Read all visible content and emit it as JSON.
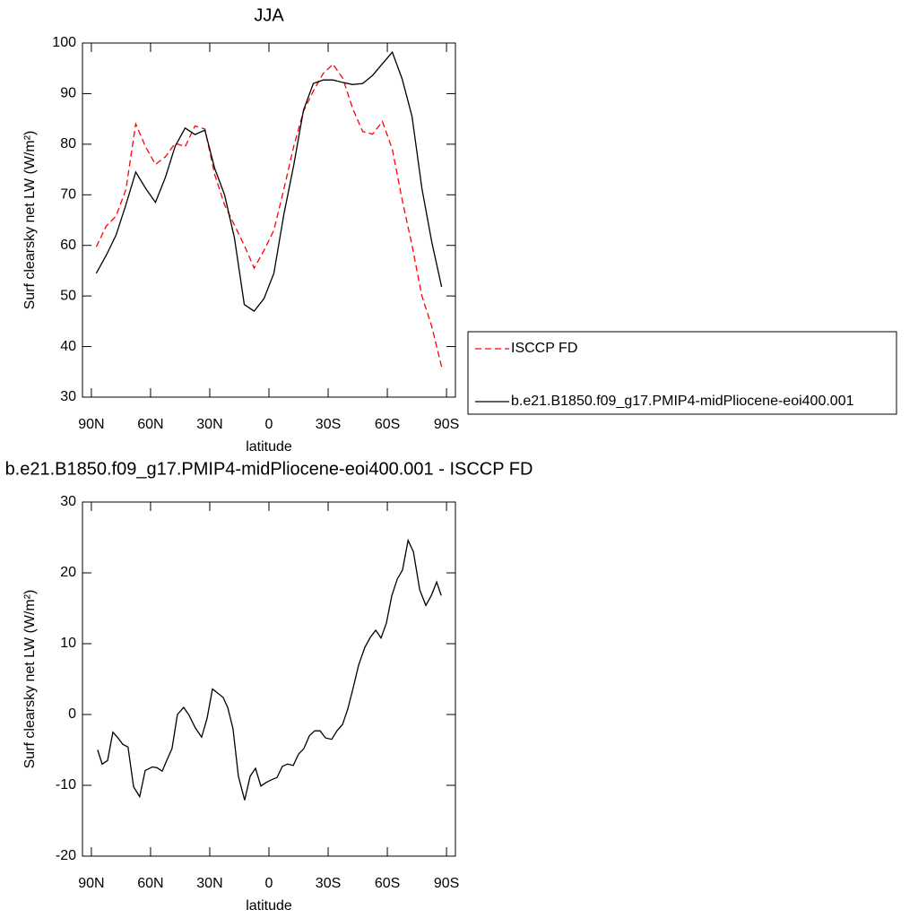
{
  "chart_data": [
    {
      "type": "line",
      "title": "JJA",
      "xlabel": "latitude",
      "ylabel": "Surf clearsky net LW (W/m²)",
      "xlim": [
        94.5,
        -94.5
      ],
      "ylim": [
        100,
        30
      ],
      "xticks": [
        {
          "value": 90,
          "label": "90N"
        },
        {
          "value": 60,
          "label": "60N"
        },
        {
          "value": 30,
          "label": "30N"
        },
        0,
        {
          "value": -30,
          "label": "30S"
        },
        {
          "value": -60,
          "label": "60S"
        },
        {
          "value": -90,
          "label": "90S"
        }
      ],
      "yticks": [
        30,
        40,
        50,
        60,
        70,
        80,
        90,
        100
      ],
      "legend": "right",
      "x": [
        87.5,
        82.5,
        77.5,
        72.5,
        67.5,
        62.5,
        57.5,
        52.5,
        47.5,
        42.5,
        37.5,
        32.5,
        27.5,
        22.5,
        17.5,
        12.5,
        7.5,
        2.5,
        -2.5,
        -7.5,
        -12.5,
        -17.5,
        -22.5,
        -27.5,
        -32.5,
        -37.5,
        -42.5,
        -47.5,
        -52.5,
        -57.5,
        -62.5,
        -67.5,
        -72.5,
        -77.5,
        -82.5,
        -87.5
      ],
      "series": [
        {
          "name": "ISCCP FD",
          "color": "#ff0000",
          "dashed": true,
          "values": [
            59.7,
            63.8,
            65.8,
            71,
            84,
            79.5,
            76,
            77.5,
            80.2,
            79.5,
            83.6,
            83,
            74,
            68,
            64,
            60,
            55.5,
            59,
            63,
            71,
            79.5,
            86.5,
            90.5,
            94,
            95.8,
            93,
            87,
            82.5,
            82,
            84.5,
            79,
            69,
            60,
            50,
            44,
            36
          ]
        },
        {
          "name": "b.e21.B1850.f09_g17.PMIP4-midPliocene-eoi400.001",
          "color": "#000000",
          "dashed": false,
          "values": [
            54.5,
            58,
            62,
            68,
            74.5,
            71.3,
            68.5,
            73.4,
            79.6,
            83.2,
            81.9,
            82.8,
            75.2,
            70,
            61.5,
            48.3,
            47,
            49.5,
            54.5,
            66,
            75.7,
            86.7,
            92,
            92.7,
            92.7,
            92.2,
            91.8,
            92,
            93.6,
            95.9,
            98.2,
            92.9,
            85.5,
            71.3,
            60.7,
            51.8
          ]
        }
      ]
    },
    {
      "type": "line",
      "title": "b.e21.B1850.f09_g17.PMIP4-midPliocene-eoi400.001 - ISCCP FD",
      "xlabel": "latitude",
      "ylabel": "Surf clearsky net LW (W/m²)",
      "xlim": [
        94.5,
        -94.5
      ],
      "ylim": [
        30,
        -20
      ],
      "xticks": [
        {
          "value": 90,
          "label": "90N"
        },
        {
          "value": 60,
          "label": "60N"
        },
        {
          "value": 30,
          "label": "30N"
        },
        0,
        {
          "value": -30,
          "label": "30S"
        },
        {
          "value": -60,
          "label": "60S"
        },
        {
          "value": -90,
          "label": "90S"
        }
      ],
      "yticks": [
        -20,
        -10,
        0,
        10,
        20,
        30
      ],
      "x": [
        86.8,
        84.5,
        81.8,
        79.1,
        76.8,
        74.1,
        71.4,
        68.6,
        65.5,
        62.7,
        59.1,
        56.8,
        54.1,
        51.8,
        49.1,
        46.4,
        43.2,
        40.5,
        37.3,
        34.1,
        31.4,
        28.6,
        25.9,
        23.2,
        20.9,
        18.2,
        15.5,
        12.3,
        9.5,
        6.8,
        4.1,
        1.4,
        -1.4,
        -4.1,
        -6.8,
        -9.5,
        -12.3,
        -15,
        -17.7,
        -20.5,
        -23.2,
        -25.9,
        -28.6,
        -31.8,
        -34.5,
        -37.3,
        -40,
        -42.7,
        -45.5,
        -48.6,
        -51.4,
        -54.1,
        -56.8,
        -59.5,
        -62.3,
        -65,
        -67.7,
        -70.5,
        -73.2,
        -76.4,
        -79.5,
        -82.3,
        -85,
        -87.3
      ],
      "series": [
        {
          "color": "#000000",
          "dashed": false,
          "values": [
            -5,
            -7,
            -6.5,
            -2.5,
            -3.2,
            -4.2,
            -4.6,
            -10.2,
            -11.6,
            -7.9,
            -7.4,
            -7.5,
            -8,
            -6.5,
            -4.8,
            0,
            1,
            -0.1,
            -1.9,
            -3.2,
            -0.6,
            3.6,
            3,
            2.4,
            1,
            -2,
            -8.7,
            -12.1,
            -8.7,
            -7.6,
            -10.1,
            -9.6,
            -9.2,
            -8.9,
            -7.3,
            -7,
            -7.2,
            -5.6,
            -4.8,
            -3,
            -2.3,
            -2.3,
            -3.3,
            -3.5,
            -2.3,
            -1.4,
            0.8,
            3.8,
            7,
            9.5,
            10.9,
            11.9,
            10.8,
            12.9,
            16.8,
            19.1,
            20.4,
            24.6,
            23,
            17.6,
            15.4,
            16.8,
            18.7,
            16.8
          ]
        }
      ]
    }
  ]
}
